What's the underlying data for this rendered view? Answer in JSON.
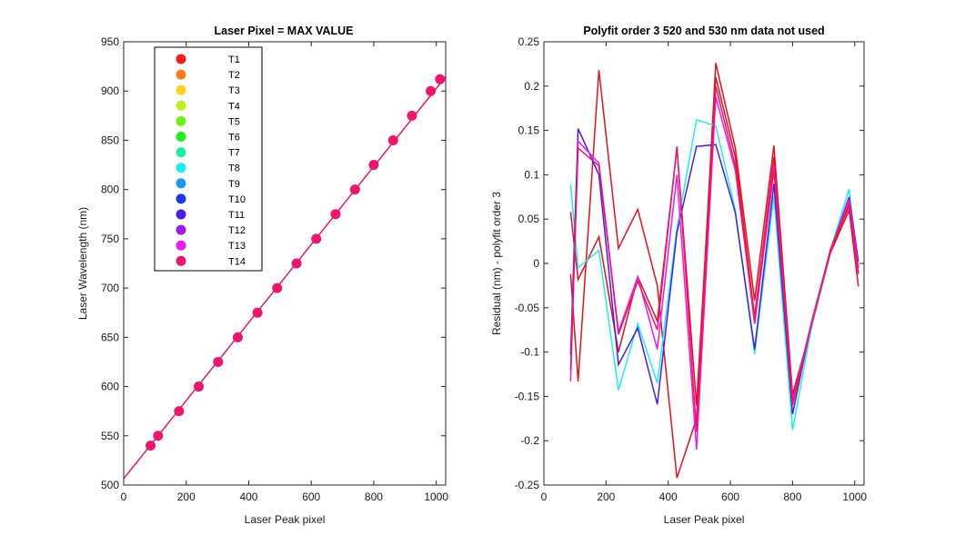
{
  "chart_data": [
    {
      "type": "scatter",
      "title": "Laser Pixel = MAX VALUE",
      "xlabel": "Laser Peak pixel",
      "ylabel": "Laser Wavelength (nm)",
      "xlim": [
        0,
        1030
      ],
      "ylim": [
        500,
        950
      ],
      "xticks": [
        0,
        200,
        400,
        600,
        800,
        1000
      ],
      "yticks": [
        500,
        550,
        600,
        650,
        700,
        750,
        800,
        850,
        900,
        950
      ],
      "grid": false,
      "legend_placement": "top-left",
      "fit_line": {
        "x": [
          0,
          1030
        ],
        "y": [
          506.5,
          914.5
        ],
        "color": "#f0146e"
      },
      "points": {
        "color": "#f0146e",
        "x": [
          86,
          110,
          177,
          240,
          302,
          365,
          428,
          491,
          553,
          616,
          678,
          740,
          800,
          862,
          922,
          982,
          1012
        ],
        "y": [
          540,
          550,
          575,
          600,
          625,
          650,
          675,
          700,
          725,
          750,
          775,
          800,
          825,
          850,
          875,
          900,
          912
        ]
      },
      "legend": [
        {
          "name": "T1",
          "color": "#ff1a1a"
        },
        {
          "name": "T2",
          "color": "#ff7a1a"
        },
        {
          "name": "T3",
          "color": "#ffd11a"
        },
        {
          "name": "T4",
          "color": "#c0f01a"
        },
        {
          "name": "T5",
          "color": "#6ef01a"
        },
        {
          "name": "T6",
          "color": "#1af01a"
        },
        {
          "name": "T7",
          "color": "#1af0a0"
        },
        {
          "name": "T8",
          "color": "#1af0f0"
        },
        {
          "name": "T9",
          "color": "#1a9af0"
        },
        {
          "name": "T10",
          "color": "#1a3af0"
        },
        {
          "name": "T11",
          "color": "#4a1af0"
        },
        {
          "name": "T12",
          "color": "#a01af0"
        },
        {
          "name": "T13",
          "color": "#f01af0"
        },
        {
          "name": "T14",
          "color": "#f0146e"
        }
      ]
    },
    {
      "type": "line",
      "title": "Polyfit order 3  520 and 530 nm data not used",
      "xlabel": "Laser Peak pixel",
      "ylabel": "Residual (nm) - polyfit order 3",
      "xlim": [
        0,
        1030
      ],
      "ylim": [
        -0.25,
        0.25
      ],
      "xticks": [
        0,
        200,
        400,
        600,
        800,
        1000
      ],
      "yticks": [
        -0.25,
        -0.2,
        -0.15,
        -0.1,
        -0.05,
        0,
        0.05,
        0.1,
        0.15,
        0.2,
        0.25
      ],
      "grid": false,
      "x": [
        86,
        110,
        177,
        240,
        302,
        365,
        428,
        491,
        553,
        616,
        678,
        740,
        800,
        862,
        922,
        982,
        1012
      ],
      "series": [
        {
          "color": "#e8101a",
          "values": [
            -0.012,
            -0.133,
            0.218,
            0.017,
            0.061,
            -0.025,
            -0.242,
            -0.175,
            0.226,
            0.13,
            -0.042,
            0.133,
            -0.148,
            -0.07,
            0.012,
            0.06,
            -0.026
          ]
        },
        {
          "color": "#e8101a",
          "values": [
            0.058,
            -0.018,
            0.03,
            -0.1,
            -0.015,
            -0.065,
            0.13,
            -0.16,
            0.21,
            0.12,
            -0.06,
            0.12,
            -0.155,
            -0.065,
            0.015,
            0.065,
            -0.01
          ]
        },
        {
          "color": "#1af0f0",
          "values": [
            0.089,
            -0.005,
            0.015,
            -0.143,
            -0.068,
            -0.135,
            0.04,
            0.162,
            0.155,
            0.06,
            -0.102,
            0.076,
            -0.188,
            -0.07,
            0.015,
            0.084,
            -0.005
          ]
        },
        {
          "color": "#4a1af0",
          "values": [
            -0.103,
            0.152,
            0.1,
            -0.114,
            -0.073,
            -0.159,
            0.035,
            0.132,
            0.134,
            0.057,
            -0.097,
            0.09,
            -0.17,
            -0.065,
            0.015,
            0.075,
            0.002
          ]
        },
        {
          "color": "#f01af0",
          "values": [
            -0.133,
            0.138,
            0.113,
            -0.077,
            -0.015,
            -0.097,
            0.1,
            -0.21,
            0.188,
            0.105,
            -0.065,
            0.11,
            -0.158,
            -0.065,
            0.015,
            0.072,
            -0.005
          ]
        },
        {
          "color": "#f0146e",
          "values": [
            -0.12,
            0.13,
            0.11,
            -0.08,
            -0.02,
            -0.075,
            0.132,
            -0.19,
            0.2,
            0.11,
            -0.068,
            0.105,
            -0.16,
            -0.068,
            0.016,
            0.068,
            -0.012
          ]
        }
      ]
    }
  ]
}
